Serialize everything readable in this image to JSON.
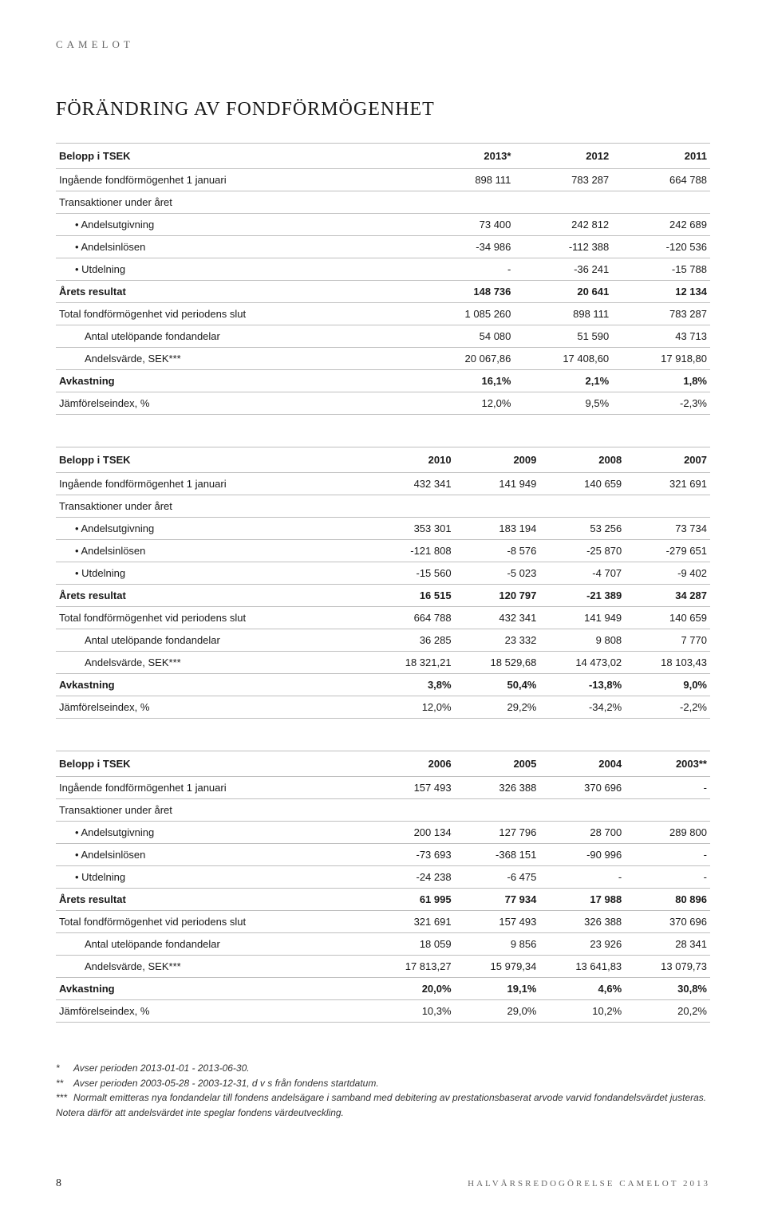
{
  "brand": "CAMELOT",
  "title": "FÖRÄNDRING AV FONDFÖRMÖGENHET",
  "tables": [
    {
      "header": [
        "Belopp i TSEK",
        "2013*",
        "2012",
        "2011"
      ],
      "rows": [
        {
          "cells": [
            "Ingående fondförmögenhet 1 januari",
            "898 111",
            "783 287",
            "664 788"
          ],
          "style": ""
        },
        {
          "cells": [
            "Transaktioner under året",
            "",
            "",
            ""
          ],
          "style": "section"
        },
        {
          "cells": [
            "•  Andelsutgivning",
            "73 400",
            "242 812",
            "242 689"
          ],
          "style": "indent"
        },
        {
          "cells": [
            "•  Andelsinlösen",
            "-34 986",
            "-112 388",
            "-120 536"
          ],
          "style": "indent"
        },
        {
          "cells": [
            "•  Utdelning",
            "-",
            "-36 241",
            "-15 788"
          ],
          "style": "indent"
        },
        {
          "cells": [
            "Årets resultat",
            "148 736",
            "20 641",
            "12 134"
          ],
          "style": "bold"
        },
        {
          "cells": [
            "Total fondförmögenhet vid periodens slut",
            "1 085 260",
            "898 111",
            "783 287"
          ],
          "style": ""
        },
        {
          "cells": [
            "Antal utelöpande fondandelar",
            "54 080",
            "51 590",
            "43 713"
          ],
          "style": "indent2"
        },
        {
          "cells": [
            "Andelsvärde, SEK***",
            "20 067,86",
            "17 408,60",
            "17 918,80"
          ],
          "style": "indent2"
        },
        {
          "cells": [
            "Avkastning",
            "16,1%",
            "2,1%",
            "1,8%"
          ],
          "style": "bold"
        },
        {
          "cells": [
            "Jämförelseindex, %",
            "12,0%",
            "9,5%",
            "-2,3%"
          ],
          "style": ""
        }
      ]
    },
    {
      "header": [
        "Belopp i TSEK",
        "2010",
        "2009",
        "2008",
        "2007"
      ],
      "rows": [
        {
          "cells": [
            "Ingående fondförmögenhet 1 januari",
            "432 341",
            "141 949",
            "140 659",
            "321 691"
          ],
          "style": ""
        },
        {
          "cells": [
            "Transaktioner under året",
            "",
            "",
            "",
            ""
          ],
          "style": "section"
        },
        {
          "cells": [
            "•  Andelsutgivning",
            "353 301",
            "183 194",
            "53 256",
            "73 734"
          ],
          "style": "indent"
        },
        {
          "cells": [
            "•  Andelsinlösen",
            "-121 808",
            "-8 576",
            "-25 870",
            "-279 651"
          ],
          "style": "indent"
        },
        {
          "cells": [
            "•  Utdelning",
            "-15 560",
            "-5 023",
            "-4 707",
            "-9 402"
          ],
          "style": "indent"
        },
        {
          "cells": [
            "Årets resultat",
            "16 515",
            "120 797",
            "-21 389",
            "34 287"
          ],
          "style": "bold"
        },
        {
          "cells": [
            "Total fondförmögenhet vid periodens slut",
            "664 788",
            "432 341",
            "141 949",
            "140 659"
          ],
          "style": ""
        },
        {
          "cells": [
            "Antal utelöpande fondandelar",
            "36 285",
            "23 332",
            "9 808",
            "7 770"
          ],
          "style": "indent2"
        },
        {
          "cells": [
            "Andelsvärde, SEK***",
            "18 321,21",
            "18 529,68",
            "14 473,02",
            "18 103,43"
          ],
          "style": "indent2"
        },
        {
          "cells": [
            "Avkastning",
            "3,8%",
            "50,4%",
            "-13,8%",
            "9,0%"
          ],
          "style": "bold"
        },
        {
          "cells": [
            "Jämförelseindex, %",
            "12,0%",
            "29,2%",
            "-34,2%",
            "-2,2%"
          ],
          "style": ""
        }
      ]
    },
    {
      "header": [
        "Belopp i TSEK",
        "2006",
        "2005",
        "2004",
        "2003**"
      ],
      "rows": [
        {
          "cells": [
            "Ingående fondförmögenhet 1 januari",
            "157 493",
            "326 388",
            "370 696",
            "-"
          ],
          "style": ""
        },
        {
          "cells": [
            "Transaktioner under året",
            "",
            "",
            "",
            ""
          ],
          "style": "section"
        },
        {
          "cells": [
            "•  Andelsutgivning",
            "200 134",
            "127 796",
            "28 700",
            "289 800"
          ],
          "style": "indent"
        },
        {
          "cells": [
            "•  Andelsinlösen",
            "-73 693",
            "-368 151",
            "-90 996",
            "-"
          ],
          "style": "indent"
        },
        {
          "cells": [
            "•  Utdelning",
            "-24 238",
            "-6 475",
            "-",
            "-"
          ],
          "style": "indent"
        },
        {
          "cells": [
            "Årets resultat",
            "61 995",
            "77 934",
            "17 988",
            "80 896"
          ],
          "style": "bold"
        },
        {
          "cells": [
            "Total fondförmögenhet vid periodens slut",
            "321 691",
            "157 493",
            "326 388",
            "370 696"
          ],
          "style": ""
        },
        {
          "cells": [
            "Antal utelöpande fondandelar",
            "18 059",
            "9 856",
            "23 926",
            "28 341"
          ],
          "style": "indent2"
        },
        {
          "cells": [
            "Andelsvärde, SEK***",
            "17 813,27",
            "15 979,34",
            "13 641,83",
            "13 079,73"
          ],
          "style": "indent2"
        },
        {
          "cells": [
            "Avkastning",
            "20,0%",
            "19,1%",
            "4,6%",
            "30,8%"
          ],
          "style": "bold"
        },
        {
          "cells": [
            "Jämförelseindex, %",
            "10,3%",
            "29,0%",
            "10,2%",
            "20,2%"
          ],
          "style": ""
        }
      ]
    }
  ],
  "footnotes": [
    {
      "star": "*",
      "text": "Avser perioden 2013-01-01 - 2013-06-30."
    },
    {
      "star": "**",
      "text": "Avser perioden 2003-05-28 - 2003-12-31, d v s från fondens startdatum."
    },
    {
      "star": "***",
      "text": "Normalt emitteras nya fondandelar till fondens andelsägare i samband med debitering av prestationsbaserat arvode varvid fondandelsvärdet justeras. Notera därför att andelsvärdet inte speglar fondens värdeutveckling."
    }
  ],
  "footer": {
    "page": "8",
    "label": "HALVÅRSREDOGÖRELSE CAMELOT 2013"
  },
  "colors": {
    "text": "#1a1a1a",
    "border": "#bfbfbf",
    "muted": "#666666",
    "bg": "#ffffff"
  }
}
